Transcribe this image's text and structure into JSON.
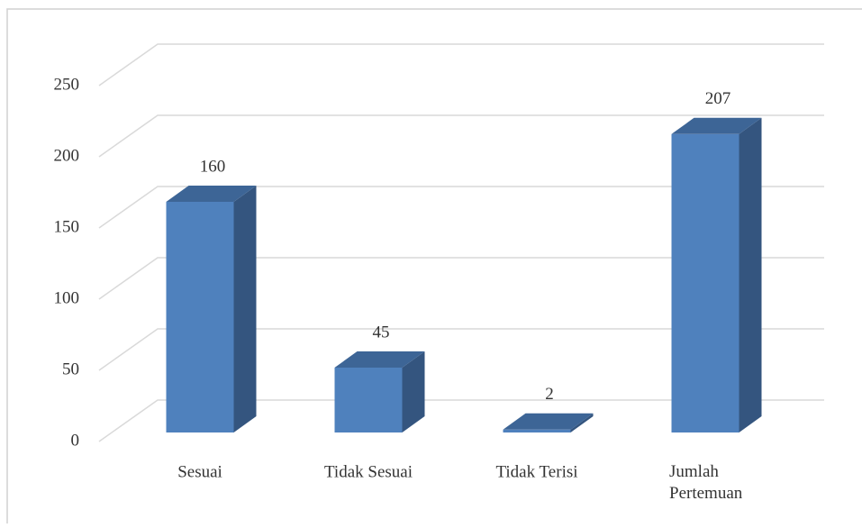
{
  "chart_data": {
    "type": "bar3d",
    "categories": [
      "Sesuai",
      "Tidak Sesuai",
      "Tidak Terisi",
      "Jumlah Pertemuan"
    ],
    "values": [
      160,
      45,
      2,
      207
    ],
    "color": "#4f81bd",
    "ylim": [
      0,
      250
    ],
    "yticks": [
      0,
      50,
      100,
      150,
      200,
      250
    ],
    "grid": true
  }
}
